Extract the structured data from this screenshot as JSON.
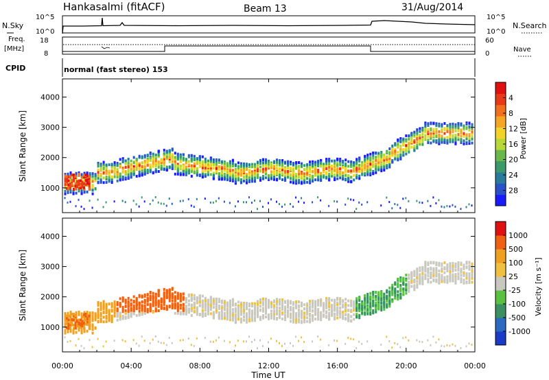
{
  "header": {
    "station": "Hankasalmi (fitACF)",
    "beam": "Beam 13",
    "date": "31/Aug/2014"
  },
  "noise_panel": {
    "left_label": "N.Sky",
    "right_label": "N.Search",
    "left_ticks": [
      "10^5",
      "10^0"
    ],
    "right_ticks": [
      "10^5",
      "10^0"
    ]
  },
  "freq_panel": {
    "left_label_1": "Freq.",
    "left_label_2": "[MHz]",
    "right_label": "Nave",
    "left_ticks": [
      "18",
      "8"
    ],
    "right_ticks": [
      "60",
      "0"
    ]
  },
  "cpid_panel": {
    "label": "CPID",
    "mode": "normal (fast stereo) 153"
  },
  "chart_data": [
    {
      "type": "heatmap",
      "title": "",
      "ylabel": "Slant Range [km]",
      "xlabel": "",
      "xlim": [
        0,
        24
      ],
      "ylim": [
        180,
        4600
      ],
      "yticks": [
        "1000",
        "2000",
        "3000",
        "4000"
      ],
      "colorbar": {
        "label": "Power [dB]",
        "ticks": [
          "4",
          "8",
          "12",
          "16",
          "20",
          "24",
          "28"
        ],
        "colors": [
          "#1a1aff",
          "#2a52c8",
          "#2a7a9a",
          "#3a9a6a",
          "#6ab84a",
          "#b8d83a",
          "#f2d32a",
          "#f5a623",
          "#f07020",
          "#e83a18",
          "#e01010"
        ]
      }
    },
    {
      "type": "heatmap",
      "title": "",
      "ylabel": "Slant Range [km]",
      "xlabel": "Time UT",
      "xlim": [
        0,
        24
      ],
      "ylim": [
        180,
        4600
      ],
      "yticks": [
        "1000",
        "2000",
        "3000",
        "4000"
      ],
      "xticks": [
        "00:00",
        "04:00",
        "08:00",
        "12:00",
        "16:00",
        "20:00",
        "00:00"
      ],
      "colorbar": {
        "label": "Velocity [m s⁻¹]",
        "ticks": [
          "1000",
          "500",
          "100",
          "25",
          "-25",
          "-100",
          "-500",
          "-1000"
        ],
        "colors": [
          "#1a3ac8",
          "#2a6ac0",
          "#3a9060",
          "#5ac040",
          "#c8c8c0",
          "#f0c040",
          "#f0a020",
          "#f06010",
          "#e01010"
        ]
      }
    }
  ]
}
